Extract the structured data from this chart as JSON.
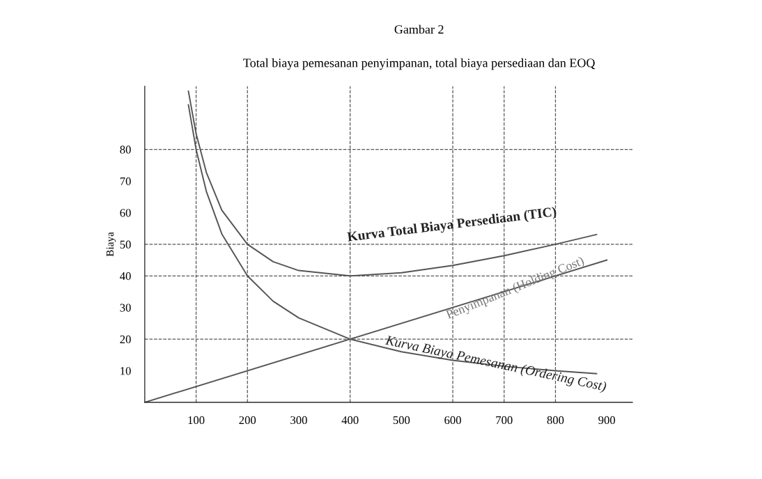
{
  "chart_data": {
    "type": "line",
    "title": "Gambar 2",
    "subtitle": "Total biaya pemesanan penyimpanan, total biaya persediaan dan EOQ",
    "ylabel": "Biaya",
    "series": [
      {
        "color": "#555555",
        "x": [
          85,
          100,
          120,
          150,
          200,
          250,
          300,
          400,
          500,
          600,
          700,
          800,
          880
        ],
        "values": [
          98.4,
          85,
          72.7,
          60.8,
          50,
          44.5,
          41.7,
          40,
          41,
          43.3,
          46.4,
          50,
          53.1
        ]
      },
      {
        "color": "#555555",
        "x": [
          85,
          100,
          120,
          150,
          200,
          250,
          300,
          400,
          500,
          600,
          700,
          800,
          880
        ],
        "values": [
          94.1,
          80,
          66.7,
          53.3,
          40,
          32,
          26.7,
          20,
          16,
          13.3,
          11.4,
          10,
          9.1
        ]
      },
      {
        "color": "#555555",
        "x": [
          0,
          900
        ],
        "values": [
          0,
          45
        ]
      }
    ],
    "xlim": [
      0,
      950
    ],
    "ylim": [
      0,
      100
    ],
    "xticks": [
      100,
      200,
      300,
      400,
      500,
      600,
      700,
      800,
      900
    ],
    "yticks": [
      10,
      20,
      30,
      40,
      50,
      60,
      70,
      80
    ],
    "grid": false,
    "legend": false,
    "marker": "none",
    "line_style": "solid",
    "ref_lines": [
      {
        "axis": "x",
        "value": 100,
        "color": "#555555",
        "line_style": "dashed"
      },
      {
        "axis": "x",
        "value": 200,
        "color": "#555555",
        "line_style": "dashed"
      },
      {
        "axis": "x",
        "value": 400,
        "color": "#555555",
        "line_style": "dashed"
      },
      {
        "axis": "x",
        "value": 600,
        "color": "#555555",
        "line_style": "dashed"
      },
      {
        "axis": "x",
        "value": 700,
        "color": "#555555",
        "line_style": "dashed"
      },
      {
        "axis": "x",
        "value": 800,
        "color": "#555555",
        "line_style": "dashed"
      },
      {
        "axis": "y",
        "value": 80,
        "color": "#555555",
        "line_style": "dashed"
      },
      {
        "axis": "y",
        "value": 50,
        "color": "#555555",
        "line_style": "dashed"
      },
      {
        "axis": "y",
        "value": 40,
        "color": "#555555",
        "line_style": "dashed"
      },
      {
        "axis": "y",
        "value": 20,
        "color": "#555555",
        "line_style": "dashed"
      }
    ],
    "annotations": [
      "Kurva Total Biaya Persediaan (TIC)",
      "Penyimpanan (Holding Cost)",
      "Kurva Biaya Pemesanan (Ordering Cost)"
    ]
  }
}
